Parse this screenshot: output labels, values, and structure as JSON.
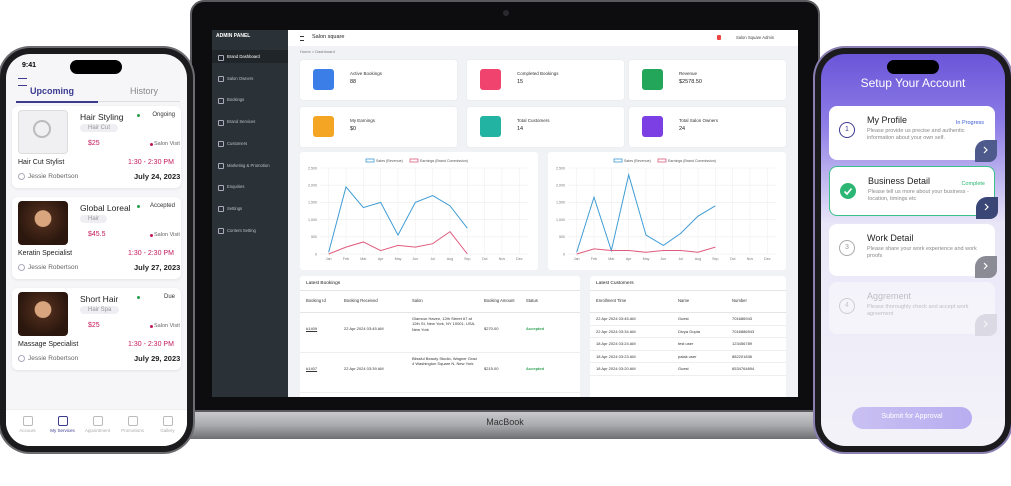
{
  "left_phone": {
    "time": "9:41",
    "tabs": [
      "Upcoming",
      "History"
    ],
    "appointments": [
      {
        "title": "Hair Styling",
        "tag": "Hair Cut",
        "status": "Ongoing",
        "price": "$25",
        "visit": "Salon Visit",
        "service": "Hair Cut Stylist",
        "time": "1:30 - 2:30 PM",
        "person": "Jessie Robertson",
        "date": "July 24, 2023"
      },
      {
        "title": "Global Loreal",
        "tag": "Hair",
        "status": "Accepted",
        "price": "$45.5",
        "visit": "Salon Visit",
        "service": "Keratin Specialist",
        "time": "1:30 - 2:30 PM",
        "person": "Jessie Robertson",
        "date": "July 27, 2023"
      },
      {
        "title": "Short Hair",
        "tag": "Hair Spa",
        "status": "Due",
        "price": "$25",
        "visit": "Salon Visit",
        "service": "Massage Specialist",
        "time": "1:30 - 2:30 PM",
        "person": "Jessie Robertson",
        "date": "July 29, 2023"
      }
    ],
    "nav": [
      "Account",
      "My Services",
      "Appointment",
      "Promotions",
      "Gallery"
    ]
  },
  "dashboard": {
    "panel_title": "ADMIN PANEL",
    "menu": [
      "Brand Dashboard",
      "Salon Owners",
      "Bookings",
      "Brand Services",
      "Customers",
      "Marketing & Promotion",
      "Enquiries",
      "Settings",
      "Content Setting"
    ],
    "header_title": "Salon square",
    "user": "Salon Square Admin",
    "breadcrumb": "Home > Dashboard",
    "stats": [
      {
        "label": "Active Bookings",
        "value": "88",
        "color": "#3b7ee8"
      },
      {
        "label": "Completed Bookings",
        "value": "15",
        "color": "#f0436d"
      },
      {
        "label": "Revenue",
        "value": "$2578.50",
        "color": "#23a55a"
      },
      {
        "label": "My Earnings",
        "value": "$0",
        "color": "#f5a524"
      },
      {
        "label": "Total Customers",
        "value": "14",
        "color": "#22b3a3"
      },
      {
        "label": "Total Salon Owners",
        "value": "24",
        "color": "#7b3fe4"
      }
    ],
    "charts": [
      {
        "categories": [
          "Jan",
          "Feb",
          "Mar",
          "Apr",
          "May",
          "Jun",
          "Jul",
          "Aug",
          "Sep",
          "Oct",
          "Nov",
          "Dec"
        ],
        "ylim": [
          0,
          2500
        ],
        "yticks": [
          0,
          500,
          {
            "value": 1000,
            "label": "1,000"
          },
          {
            "value": 1500,
            "label": "1,500"
          },
          {
            "value": 2000,
            "label": "2,000"
          },
          {
            "value": 2500,
            "label": "2,500"
          }
        ],
        "series": [
          {
            "name": "Sales (Revenue)",
            "color": "#3d9bd4",
            "values": [
              50,
              1950,
              1350,
              1500,
              550,
              1500,
              1700,
              1400,
              750,
              null,
              null,
              null
            ]
          },
          {
            "name": "Earnings (Brand Commission)",
            "color": "#e05a7e",
            "values": [
              0,
              200,
              350,
              100,
              250,
              200,
              300,
              650,
              0,
              null,
              null,
              null
            ]
          }
        ]
      },
      {
        "categories": [
          "Jan",
          "Feb",
          "Mar",
          "Apr",
          "May",
          "Jun",
          "Jul",
          "Aug",
          "Sep",
          "Oct",
          "Nov",
          "Dec"
        ],
        "ylim": [
          0,
          2500
        ],
        "yticks": [
          0,
          500,
          {
            "value": 1000,
            "label": "1,000"
          },
          {
            "value": 1500,
            "label": "1,500"
          },
          {
            "value": 2000,
            "label": "2,000"
          },
          {
            "value": 2500,
            "label": "2,500"
          }
        ],
        "series": [
          {
            "name": "Sales (Revenue)",
            "color": "#3d9bd4",
            "values": [
              50,
              1650,
              100,
              2300,
              550,
              250,
              600,
              1100,
              1400,
              null,
              null,
              null
            ]
          },
          {
            "name": "Earnings (Brand Commission)",
            "color": "#e05a7e",
            "values": [
              0,
              150,
              100,
              100,
              50,
              100,
              100,
              50,
              200,
              null,
              null,
              null
            ]
          }
        ]
      }
    ],
    "bookings": {
      "title": "Latest Bookings",
      "headers": [
        "Booking Id",
        "Booking Received",
        "Salon",
        "Booking Amount",
        "Status"
      ],
      "rows": [
        [
          "#1409",
          "22 Apr 2024 03:45 AM",
          "Glamour Haven, 12th Street #7 at 12th St, New York, NY 10001, USA, New York",
          "$270.00",
          "Accepted"
        ],
        [
          "#1407",
          "22 Apr 2024 03:39 AM",
          "Blissful Beauty Studio, Wagner Grad 4 Washington Square N, New York",
          "$215.00",
          "Accepted"
        ]
      ]
    },
    "customers": {
      "title": "Latest Customers",
      "headers": [
        "Enrollment Time",
        "Name",
        "Number"
      ],
      "rows": [
        [
          "22 Apr 2024 03:45 AM",
          "Guest",
          "701686943"
        ],
        [
          "22 Apr 2024 03:34 AM",
          "Divya Gupta",
          "7016886943"
        ],
        [
          "18 Apr 2024 03:24 AM",
          "test user",
          "123456789"
        ],
        [
          "18 Apr 2024 03:23 AM",
          "palak user",
          "882201836"
        ],
        [
          "18 Apr 2024 03:20 AM",
          "Guest",
          "6534764694"
        ]
      ]
    }
  },
  "laptop_label": "MacBook",
  "right_phone": {
    "title": "Setup Your Account",
    "steps": [
      {
        "number": "1",
        "title": "My Profile",
        "status": "In Progress",
        "text": "Please provide us precise and authentic information about your own self."
      },
      {
        "title": "Business Detail",
        "status": "Complete",
        "text": "Please tell us more about your business - location, timings etc"
      },
      {
        "number": "3",
        "title": "Work Detail",
        "text": "Please share your work experience and work proofs"
      },
      {
        "number": "4",
        "title": "Aggrement",
        "text": "Please thoroughly check and accept work agreement"
      }
    ],
    "button": "Submit for Approval"
  }
}
